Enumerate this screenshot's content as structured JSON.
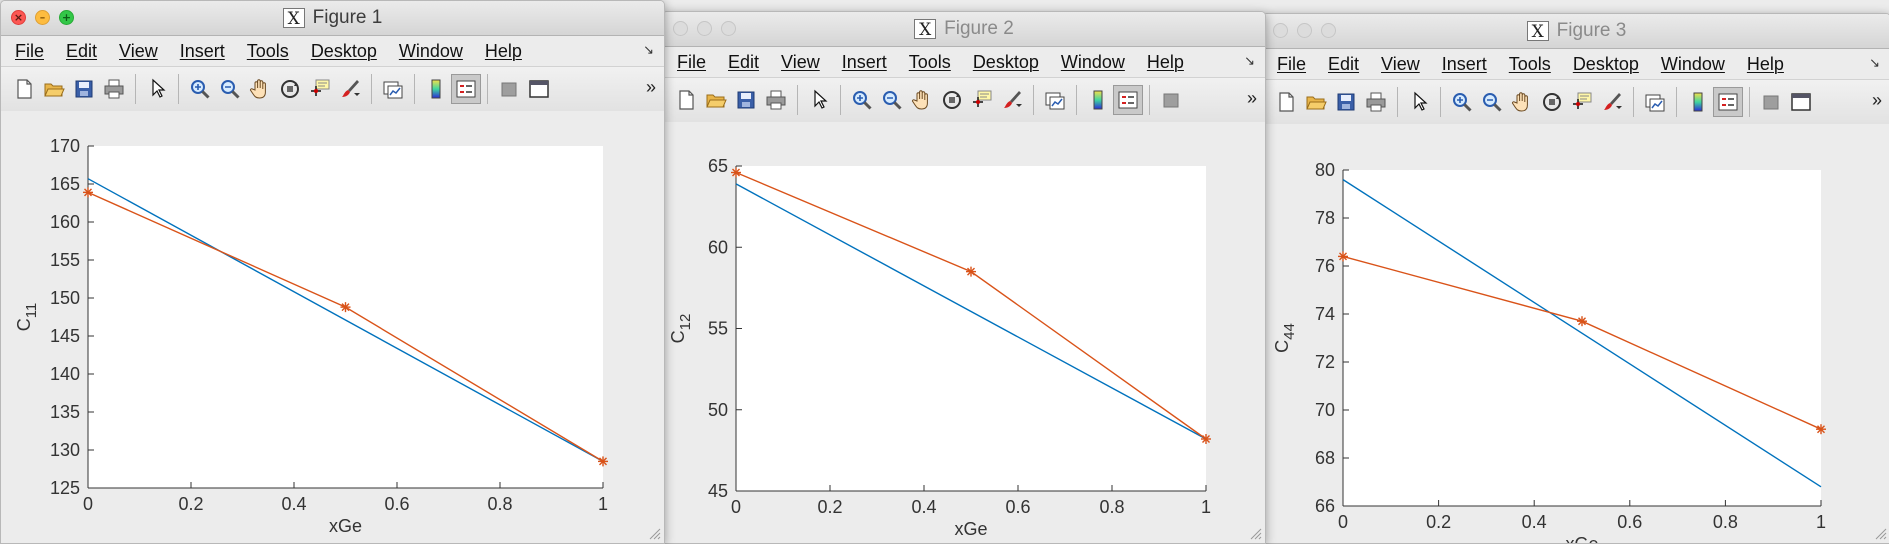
{
  "menu": [
    "File",
    "Edit",
    "View",
    "Insert",
    "Tools",
    "Desktop",
    "Window",
    "Help"
  ],
  "toolbar_icons": [
    "new-file-icon",
    "open-folder-icon",
    "save-icon",
    "print-icon",
    "pointer-icon",
    "zoom-in-icon",
    "zoom-out-icon",
    "pan-hand-icon",
    "rotate-3d-icon",
    "data-cursor-icon",
    "brush-icon",
    "link-plot-icon",
    "colorbar-icon",
    "legend-icon",
    "hide-tools-icon",
    "dock-icon"
  ],
  "colors": {
    "fit_line": "#0072bd",
    "data_line": "#d95319"
  },
  "figures": [
    {
      "title": "Figure 1",
      "active": true,
      "chart_data": {
        "type": "line",
        "xlabel": "xGe",
        "ylabel": "C",
        "ylabel_sub": "11",
        "xlim": [
          0,
          1
        ],
        "ylim": [
          125,
          170
        ],
        "xticks": [
          "0",
          "0.2",
          "0.4",
          "0.6",
          "0.8",
          "1"
        ],
        "yticks": [
          "125",
          "130",
          "135",
          "140",
          "145",
          "150",
          "155",
          "160",
          "165",
          "170"
        ],
        "series": [
          {
            "x": [
              0,
              1
            ],
            "y": [
              165.7,
              128.5
            ],
            "marker": "none",
            "color": "#0072bd"
          },
          {
            "x": [
              0,
              0.5,
              1
            ],
            "y": [
              163.9,
              148.8,
              128.5
            ],
            "marker": "*",
            "color": "#d95319"
          }
        ]
      }
    },
    {
      "title": "Figure 2",
      "active": false,
      "chart_data": {
        "type": "line",
        "xlabel": "xGe",
        "ylabel": "C",
        "ylabel_sub": "12",
        "xlim": [
          0,
          1
        ],
        "ylim": [
          45,
          65
        ],
        "xticks": [
          "0",
          "0.2",
          "0.4",
          "0.6",
          "0.8",
          "1"
        ],
        "yticks": [
          "45",
          "50",
          "55",
          "60",
          "65"
        ],
        "series": [
          {
            "x": [
              0,
              1
            ],
            "y": [
              63.9,
              48.2
            ],
            "marker": "none",
            "color": "#0072bd"
          },
          {
            "x": [
              0,
              0.5,
              1
            ],
            "y": [
              64.6,
              58.5,
              48.2
            ],
            "marker": "*",
            "color": "#d95319"
          }
        ]
      }
    },
    {
      "title": "Figure 3",
      "active": false,
      "chart_data": {
        "type": "line",
        "xlabel": "xGe",
        "ylabel": "C",
        "ylabel_sub": "44",
        "xlim": [
          0,
          1
        ],
        "ylim": [
          66,
          80
        ],
        "xticks": [
          "0",
          "0.2",
          "0.4",
          "0.6",
          "0.8",
          "1"
        ],
        "yticks": [
          "66",
          "68",
          "70",
          "72",
          "74",
          "76",
          "78",
          "80"
        ],
        "series": [
          {
            "x": [
              0,
              1
            ],
            "y": [
              79.6,
              66.8
            ],
            "marker": "none",
            "color": "#0072bd"
          },
          {
            "x": [
              0,
              0.5,
              1
            ],
            "y": [
              76.4,
              73.7,
              69.2
            ],
            "marker": "*",
            "color": "#d95319"
          }
        ]
      }
    }
  ]
}
